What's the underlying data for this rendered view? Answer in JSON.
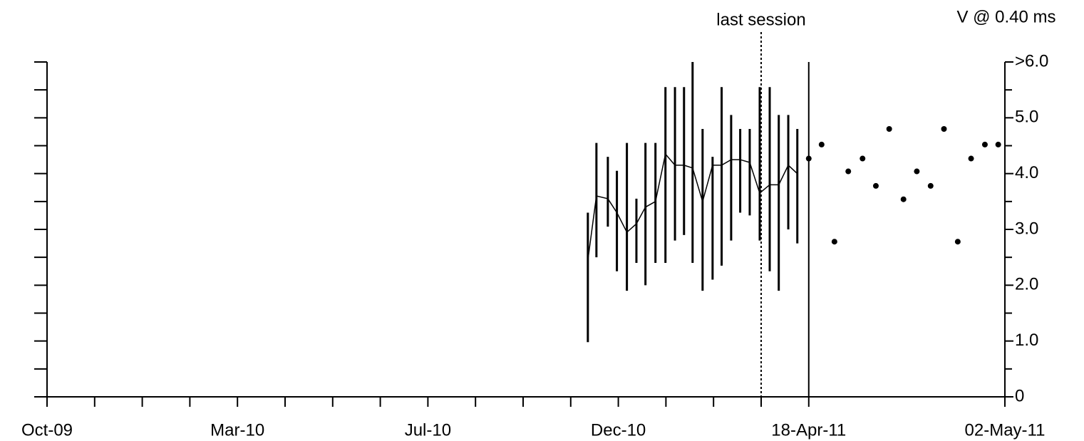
{
  "chart_data": {
    "type": "errorbar",
    "y_axis_title": "V @ 0.40 ms",
    "annotation": {
      "text": "last session",
      "x": 15
    },
    "xlim": [
      0,
      20.12
    ],
    "xticks": [
      {
        "value": 0,
        "label": "Oct-09"
      },
      {
        "value": 1,
        "label": null
      },
      {
        "value": 2,
        "label": null
      },
      {
        "value": 3,
        "label": null
      },
      {
        "value": 4,
        "label": "Mar-10"
      },
      {
        "value": 5,
        "label": null
      },
      {
        "value": 6,
        "label": null
      },
      {
        "value": 7,
        "label": null
      },
      {
        "value": 8,
        "label": "Jul-10"
      },
      {
        "value": 9,
        "label": null
      },
      {
        "value": 10,
        "label": null
      },
      {
        "value": 11,
        "label": null
      },
      {
        "value": 12,
        "label": "Dec-10"
      },
      {
        "value": 13,
        "label": null
      },
      {
        "value": 14,
        "label": null
      },
      {
        "value": 15,
        "label": null
      },
      {
        "value": 16,
        "label": "18-Apr-11"
      },
      {
        "value": 20.12,
        "label": "02-May-11"
      }
    ],
    "ylim": [
      0,
      6
    ],
    "yticks": [
      0,
      {
        "value": 1,
        "label": "1.0"
      },
      {
        "value": 2,
        "label": "2.0"
      },
      {
        "value": 3,
        "label": "3.0"
      },
      {
        "value": 4,
        "label": "4.0"
      },
      {
        "value": 5,
        "label": "5.0"
      },
      {
        "value": 6,
        "label": ">6.0"
      }
    ],
    "yminor_ticks": [
      0.5,
      1.5,
      2.5,
      3.5,
      4.5,
      5.5
    ],
    "divider_x": 16,
    "color": "#000000",
    "series": [
      {
        "x": [
          11.36,
          11.54,
          11.78,
          11.97,
          12.18,
          12.38,
          12.57,
          12.78,
          12.99,
          13.19,
          13.38,
          13.56,
          13.77,
          13.98,
          14.17,
          14.37,
          14.56,
          14.76,
          14.97,
          15.18,
          15.37,
          15.57,
          15.76
        ],
        "values": [
          2.45,
          3.6,
          3.55,
          3.3,
          2.95,
          3.1,
          3.4,
          3.5,
          4.35,
          4.15,
          4.15,
          4.1,
          3.5,
          4.15,
          4.15,
          4.25,
          4.25,
          4.2,
          3.65,
          3.8,
          3.8,
          4.15,
          4.0
        ],
        "low": [
          0.98,
          2.5,
          3.05,
          2.25,
          1.9,
          2.4,
          2.0,
          2.4,
          2.4,
          2.8,
          2.9,
          2.4,
          1.9,
          2.1,
          2.35,
          2.8,
          3.3,
          3.25,
          2.8,
          2.25,
          1.9,
          3.0,
          2.75
        ],
        "high": [
          3.3,
          4.55,
          4.3,
          4.05,
          4.55,
          3.55,
          4.55,
          4.55,
          5.55,
          5.55,
          5.55,
          6.0,
          4.8,
          4.3,
          5.55,
          5.05,
          4.8,
          4.8,
          5.55,
          5.55,
          5.05,
          5.05,
          4.8
        ]
      },
      {
        "x": [
          16.0,
          16.27,
          16.54,
          16.83,
          17.13,
          17.41,
          17.69,
          17.99,
          18.27,
          18.56,
          18.84,
          19.13,
          19.41,
          19.7,
          19.98
        ],
        "values": [
          4.27,
          4.52,
          2.78,
          4.04,
          4.27,
          3.78,
          4.8,
          3.54,
          4.04,
          3.78,
          4.8,
          2.78,
          4.27,
          4.52,
          4.52
        ]
      }
    ]
  }
}
